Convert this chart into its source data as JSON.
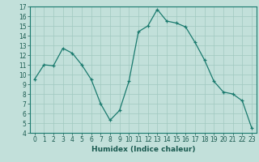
{
  "x": [
    0,
    1,
    2,
    3,
    4,
    5,
    6,
    7,
    8,
    9,
    10,
    11,
    12,
    13,
    14,
    15,
    16,
    17,
    18,
    19,
    20,
    21,
    22,
    23
  ],
  "y": [
    9.5,
    11.0,
    10.9,
    12.7,
    12.2,
    11.0,
    9.5,
    7.0,
    5.3,
    6.3,
    9.3,
    14.4,
    15.0,
    16.7,
    15.5,
    15.3,
    14.9,
    13.3,
    11.5,
    9.3,
    8.2,
    8.0,
    7.3,
    4.5
  ],
  "line_color": "#1a7a6e",
  "marker": "+",
  "marker_color": "#1a7a6e",
  "bg_color": "#c2e0da",
  "grid_color": "#a0c8c0",
  "xlabel": "Humidex (Indice chaleur)",
  "ylim": [
    4,
    17
  ],
  "xlim": [
    -0.5,
    23.5
  ],
  "yticks": [
    4,
    5,
    6,
    7,
    8,
    9,
    10,
    11,
    12,
    13,
    14,
    15,
    16,
    17
  ],
  "xticks": [
    0,
    1,
    2,
    3,
    4,
    5,
    6,
    7,
    8,
    9,
    10,
    11,
    12,
    13,
    14,
    15,
    16,
    17,
    18,
    19,
    20,
    21,
    22,
    23
  ],
  "label_fontsize": 6.5,
  "tick_fontsize": 5.5,
  "tick_color": "#1a5a50",
  "spine_color": "#1a7a6e"
}
